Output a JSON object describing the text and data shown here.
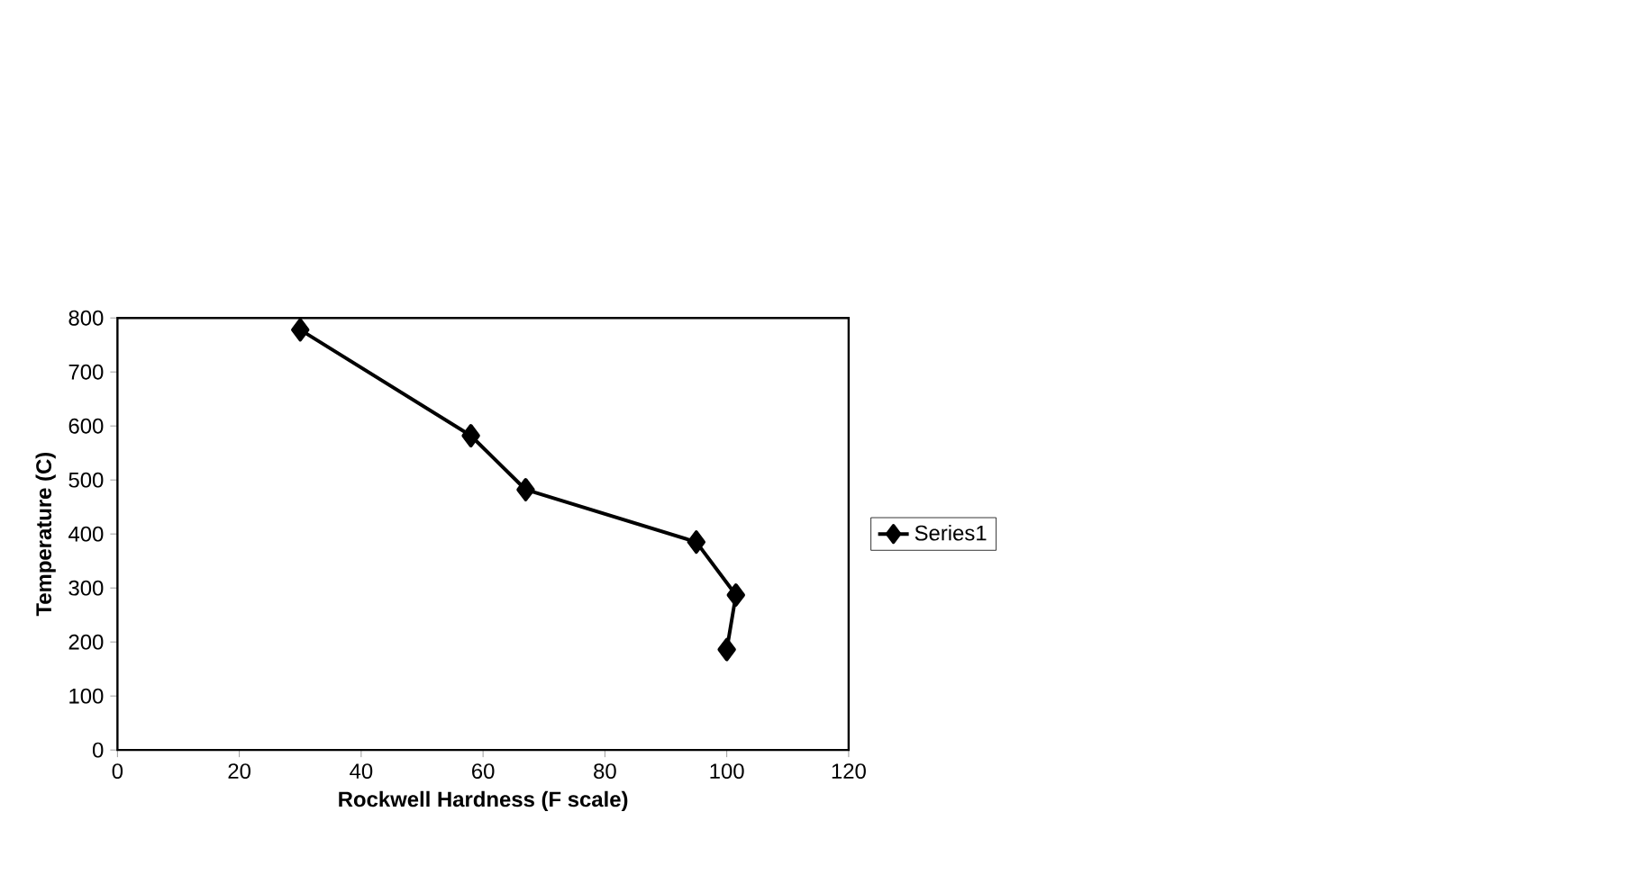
{
  "chart_data": {
    "type": "line",
    "xlabel": "Rockwell Hardness (F scale)",
    "ylabel": "Temperature (C)",
    "x": [
      30,
      58,
      67,
      95,
      101.5,
      100
    ],
    "series": [
      {
        "name": "Series1",
        "color": "#000000",
        "values": [
          778,
          582,
          482,
          385,
          287,
          186
        ]
      }
    ],
    "xlim": [
      0,
      120
    ],
    "xticks": [
      0,
      20,
      40,
      60,
      80,
      100,
      120
    ],
    "ylim": [
      0,
      800
    ],
    "yticks": [
      0,
      100,
      200,
      300,
      400,
      500,
      600,
      700,
      800
    ],
    "grid": false,
    "legend": "right",
    "marker": "diamond",
    "line_style": "solid"
  }
}
